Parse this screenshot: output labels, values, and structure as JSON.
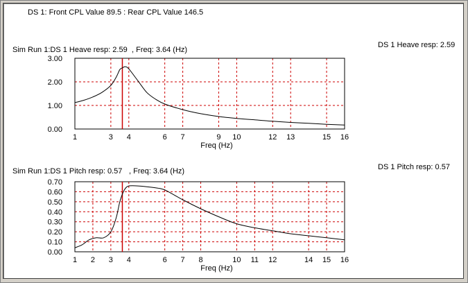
{
  "header": "DS 1: Front CPL Value 89.5 : Rear CPL Value 146.5",
  "colors": {
    "grid": "#cc0000",
    "curve": "#000000",
    "cursor": "#cc0000",
    "background": "#ffffff"
  },
  "chart_data": [
    {
      "type": "line",
      "title_left": "Sim Run 1:DS 1 Heave resp: 2.59",
      "title_freq": ", Freq: 3.64 (Hz)",
      "side_label": "DS 1 Heave resp: 2.59",
      "xlabel": "Freq (Hz)",
      "xlim": [
        1,
        16
      ],
      "ylim": [
        0,
        3
      ],
      "xticks": [
        1,
        3,
        4,
        6,
        7,
        9,
        10,
        12,
        13,
        15,
        16
      ],
      "yticks": [
        "0.00",
        "1.00",
        "2.00",
        "3.00"
      ],
      "cursor_x": 3.64,
      "grid": true,
      "series": [
        {
          "x": [
            1.0,
            1.5,
            2.0,
            2.5,
            3.0,
            3.3,
            3.5,
            3.64,
            3.8,
            4.0,
            4.5,
            5.0,
            5.5,
            6.0,
            7.0,
            8.0,
            9.0,
            10.0,
            11.0,
            12.0,
            13.0,
            14.0,
            15.0,
            16.0
          ],
          "y": [
            1.12,
            1.22,
            1.36,
            1.55,
            1.85,
            2.2,
            2.52,
            2.59,
            2.64,
            2.55,
            2.05,
            1.55,
            1.26,
            1.06,
            0.82,
            0.65,
            0.53,
            0.45,
            0.39,
            0.33,
            0.28,
            0.24,
            0.2,
            0.17
          ]
        }
      ]
    },
    {
      "type": "line",
      "title_left": "Sim Run 1:DS 1 Pitch resp: 0.57",
      "title_freq": ", Freq: 3.64 (Hz)",
      "side_label": "DS 1 Pitch resp: 0.57",
      "xlabel": "Freq (Hz)",
      "xlim": [
        1,
        16
      ],
      "ylim": [
        0,
        0.7
      ],
      "xticks": [
        1,
        2,
        3,
        4,
        6,
        7,
        8,
        10,
        11,
        12,
        14,
        15,
        16
      ],
      "yticks": [
        "0.00",
        "0.10",
        "0.20",
        "0.30",
        "0.40",
        "0.50",
        "0.60",
        "0.70"
      ],
      "cursor_x": 3.64,
      "grid": true,
      "series": [
        {
          "x": [
            1.0,
            1.4,
            1.8,
            2.2,
            2.6,
            3.0,
            3.3,
            3.5,
            3.7,
            3.9,
            4.2,
            5.0,
            5.8,
            6.2,
            7.0,
            8.0,
            9.0,
            10.0,
            11.0,
            12.0,
            13.0,
            14.0,
            15.0,
            16.0
          ],
          "y": [
            0.04,
            0.07,
            0.12,
            0.14,
            0.14,
            0.2,
            0.34,
            0.5,
            0.6,
            0.65,
            0.66,
            0.65,
            0.63,
            0.6,
            0.52,
            0.43,
            0.35,
            0.28,
            0.24,
            0.21,
            0.18,
            0.16,
            0.14,
            0.12
          ]
        }
      ]
    }
  ]
}
